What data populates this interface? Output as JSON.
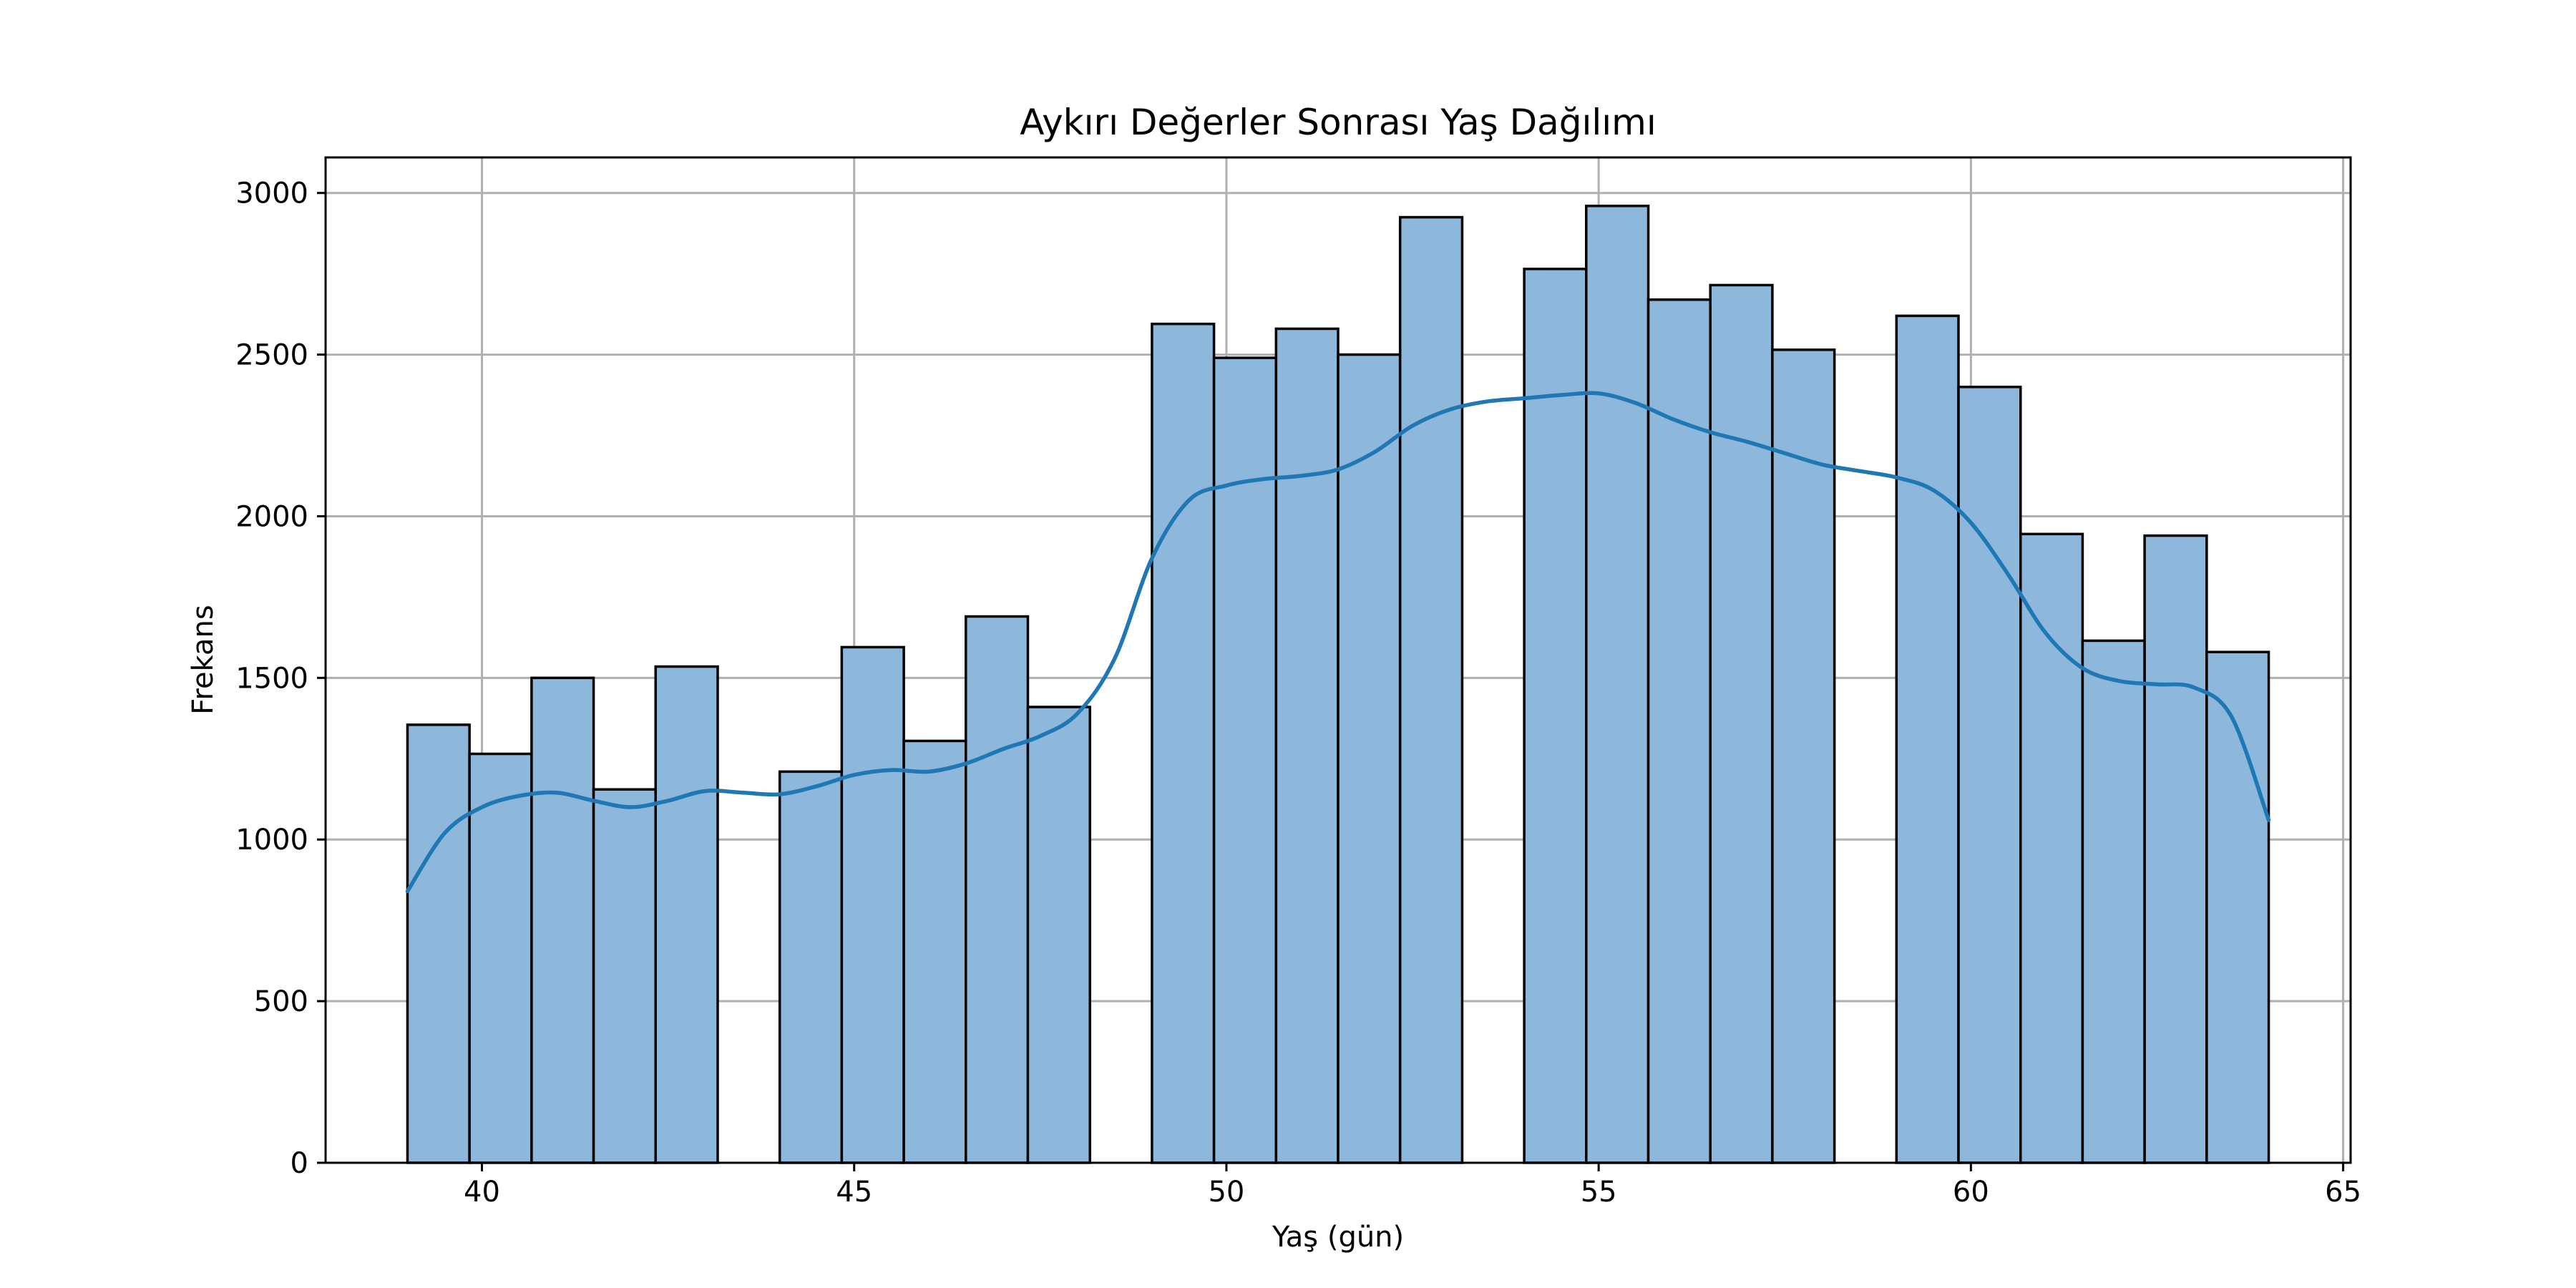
{
  "chart_data": {
    "type": "bar",
    "title": "Aykırı Değerler Sonrası Yaş Dağılımı",
    "xlabel": "Yaş (gün)",
    "ylabel": "Frekans",
    "xlim": [
      37.9,
      65.1
    ],
    "ylim": [
      0,
      3110
    ],
    "xticks": [
      40,
      45,
      50,
      55,
      60,
      65
    ],
    "yticks": [
      0,
      500,
      1000,
      1500,
      2000,
      2500,
      3000
    ],
    "grid": true,
    "bin_edges": [
      39.0,
      39.833,
      40.667,
      41.5,
      42.333,
      43.167,
      44.0,
      44.833,
      45.667,
      46.5,
      47.333,
      48.167,
      49.0,
      49.833,
      50.667,
      51.5,
      52.333,
      53.167,
      54.0,
      54.833,
      55.667,
      56.5,
      57.333,
      58.167,
      59.0,
      59.833,
      60.667,
      61.5,
      62.333,
      63.167,
      64.0
    ],
    "values": [
      1355,
      1265,
      1500,
      1155,
      1535,
      0,
      1210,
      1595,
      1305,
      1690,
      1410,
      0,
      2595,
      2490,
      2580,
      2500,
      2925,
      0,
      2765,
      2960,
      2670,
      2715,
      2515,
      0,
      2620,
      2400,
      1945,
      1615,
      1940,
      1580
    ],
    "kde": {
      "x": [
        39.0,
        39.5,
        40.0,
        40.5,
        41.0,
        41.5,
        42.0,
        42.5,
        43.0,
        43.5,
        44.0,
        44.5,
        45.0,
        45.5,
        46.0,
        46.5,
        47.0,
        47.5,
        48.0,
        48.5,
        49.0,
        49.5,
        50.0,
        50.5,
        51.0,
        51.5,
        52.0,
        52.5,
        53.0,
        53.5,
        54.0,
        54.5,
        55.0,
        55.5,
        56.0,
        56.5,
        57.0,
        57.5,
        58.0,
        58.5,
        59.0,
        59.5,
        60.0,
        60.5,
        61.0,
        61.5,
        62.0,
        62.5,
        63.0,
        63.5,
        64.0
      ],
      "y": [
        840,
        1020,
        1100,
        1135,
        1145,
        1120,
        1100,
        1120,
        1150,
        1145,
        1140,
        1165,
        1200,
        1215,
        1210,
        1235,
        1280,
        1320,
        1390,
        1560,
        1870,
        2050,
        2095,
        2115,
        2125,
        2145,
        2200,
        2280,
        2330,
        2355,
        2365,
        2375,
        2380,
        2350,
        2300,
        2260,
        2230,
        2195,
        2160,
        2140,
        2120,
        2080,
        1980,
        1820,
        1640,
        1530,
        1490,
        1480,
        1470,
        1380,
        1060
      ]
    },
    "colors": {
      "bar_fill": "#8db8db",
      "bar_edge": "#000000",
      "kde_line": "#1f77b4",
      "grid": "#b0b0b0"
    }
  }
}
